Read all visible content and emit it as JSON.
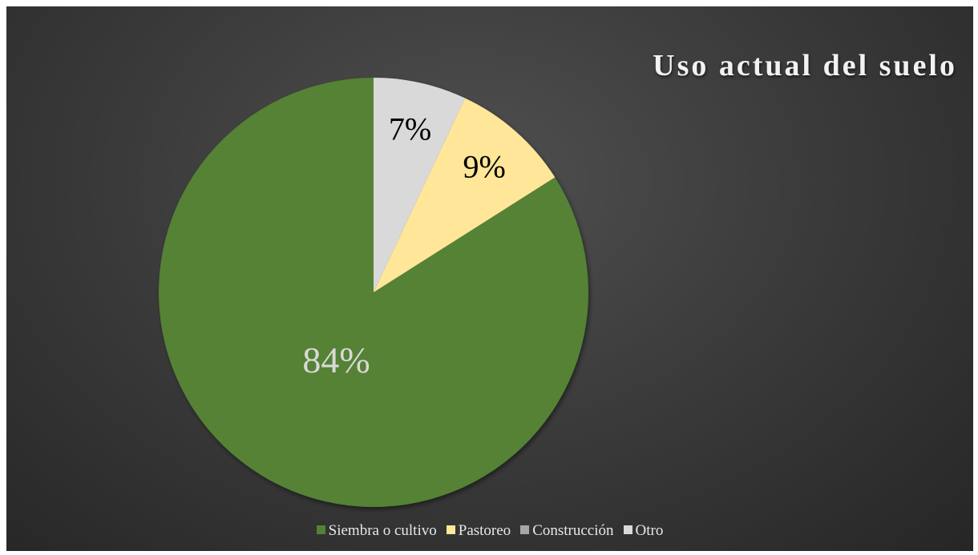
{
  "chart_data": {
    "type": "pie",
    "title": "Uso actual del suelo",
    "slices": [
      {
        "label": "Siembra o cultivo",
        "value": 84,
        "display": "84%",
        "color": "#548235",
        "label_color": "#d9d9d9"
      },
      {
        "label": "Pastoreo",
        "value": 9,
        "display": "9%",
        "color": "#ffe699",
        "label_color": "#000000"
      },
      {
        "label": "Construcción",
        "value": 0,
        "display": "",
        "color": "#a6a6a6",
        "label_color": "#000000"
      },
      {
        "label": "Otro",
        "value": 7,
        "display": "7%",
        "color": "#d9d9d9",
        "label_color": "#000000"
      }
    ],
    "start_angle": "12 o'clock",
    "direction": "counterclockwise",
    "legend_position": "bottom"
  }
}
